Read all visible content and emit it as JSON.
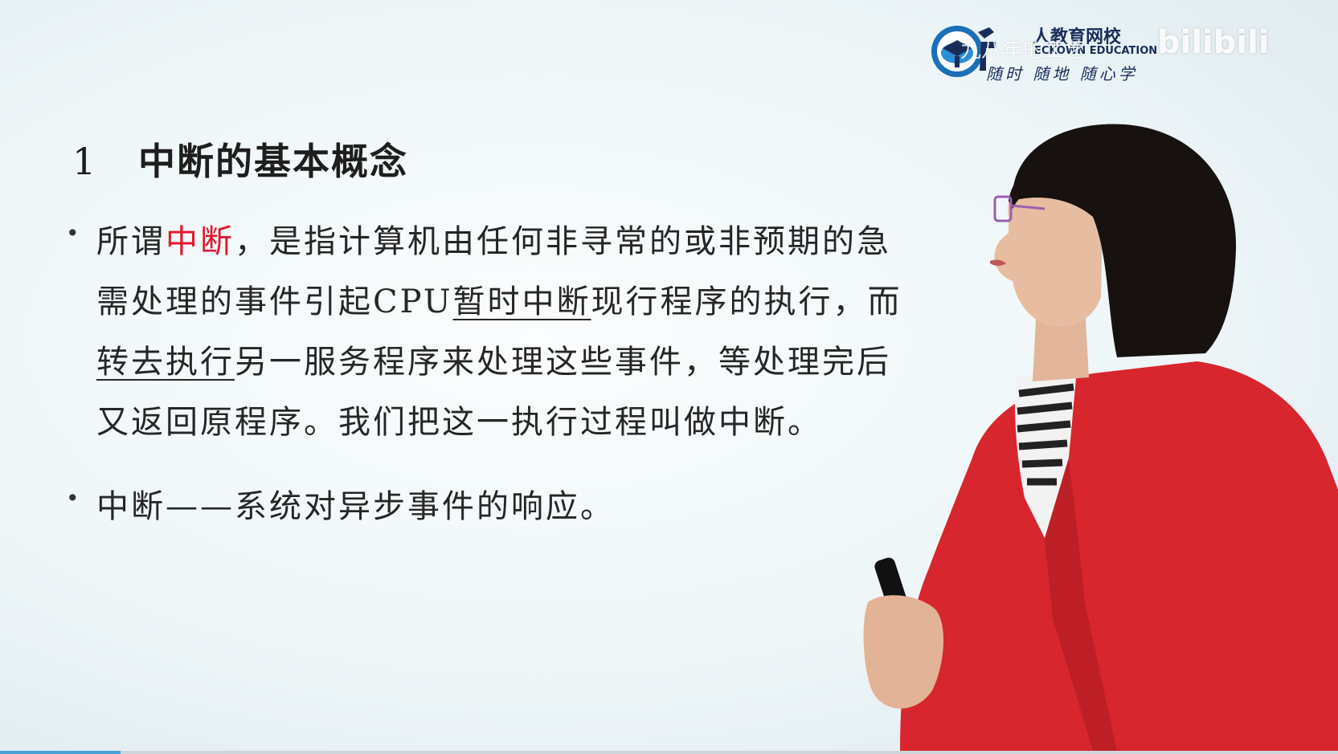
{
  "slide": {
    "heading_number": "1",
    "heading_text": "中断的基本概念",
    "bullets": [
      {
        "lines": [
          [
            {
              "text": "所谓",
              "style": "normal"
            },
            {
              "text": "中断",
              "style": "red"
            },
            {
              "text": "，是指计算机由任何非寻常的或非预期的急",
              "style": "normal"
            }
          ],
          [
            {
              "text": "需处理的事件引起CPU",
              "style": "normal"
            },
            {
              "text": "暂时中断",
              "style": "underline"
            },
            {
              "text": "现行程序的执行，而",
              "style": "normal"
            }
          ],
          [
            {
              "text": "转去执行",
              "style": "underline"
            },
            {
              "text": "另一服务程序来处理这些事件，等处理完后",
              "style": "normal"
            }
          ],
          [
            {
              "text": "又返回原程序。我们把这一执行过程叫做中断。",
              "style": "normal"
            }
          ]
        ]
      },
      {
        "lines": [
          [
            {
              "text": "中断——系统对异步事件的响应。",
              "style": "normal"
            }
          ]
        ]
      }
    ]
  },
  "logo": {
    "name": "人教育网校",
    "english": "ECKOWN EDUCATION",
    "slogan": "随时 随地 随心学",
    "primary_color": "#1a6fb8"
  },
  "watermark": {
    "overlay_text": "九八年的工艺",
    "brand": "bilibili"
  },
  "playback": {
    "progress_fraction": 0.09
  },
  "colors": {
    "highlight_red": "#e3172f",
    "presenter_jacket": "#d8262e",
    "progress": "#4aa3d8"
  }
}
